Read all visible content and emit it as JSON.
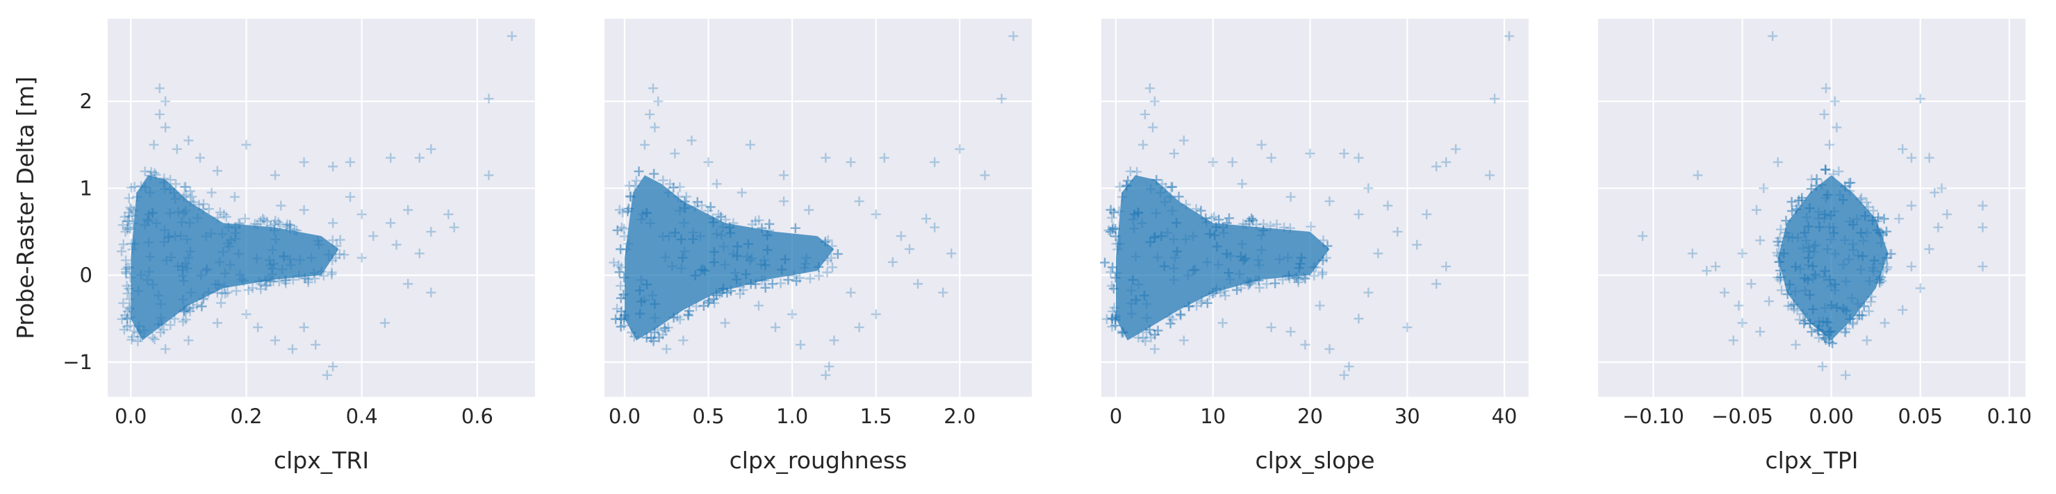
{
  "colors": {
    "marker": "#1f77b4",
    "panel_background": "#eaeaf2",
    "grid": "#ffffff"
  },
  "chart_data": [
    {
      "type": "scatter",
      "marker": "+",
      "xlabel": "clpx_TRI",
      "ylabel": "Probe-Raster Delta [m]",
      "xlim": [
        -0.04,
        0.7
      ],
      "ylim": [
        -1.4,
        2.95
      ],
      "xticks": [
        0.0,
        0.2,
        0.4,
        0.6
      ],
      "xtick_labels": [
        "0.0",
        "0.2",
        "0.4",
        "0.6"
      ],
      "yticks": [
        -1,
        0,
        1,
        2
      ],
      "ytick_labels": [
        "−1",
        "0",
        "1",
        "2"
      ],
      "grid": true,
      "dense_region": [
        [
          0.0,
          0.2
        ],
        [
          0.01,
          0.95
        ],
        [
          0.03,
          1.15
        ],
        [
          0.06,
          1.1
        ],
        [
          0.1,
          0.85
        ],
        [
          0.16,
          0.6
        ],
        [
          0.25,
          0.55
        ],
        [
          0.33,
          0.45
        ],
        [
          0.36,
          0.3
        ],
        [
          0.33,
          0.0
        ],
        [
          0.25,
          -0.05
        ],
        [
          0.16,
          -0.15
        ],
        [
          0.1,
          -0.35
        ],
        [
          0.06,
          -0.55
        ],
        [
          0.02,
          -0.75
        ],
        [
          0.0,
          -0.5
        ]
      ],
      "outliers": [
        [
          0.66,
          2.75
        ],
        [
          0.62,
          2.03
        ],
        [
          0.62,
          1.15
        ],
        [
          0.52,
          1.45
        ],
        [
          0.5,
          1.35
        ],
        [
          0.45,
          1.35
        ],
        [
          0.38,
          1.3
        ],
        [
          0.35,
          1.25
        ],
        [
          0.3,
          1.3
        ],
        [
          0.2,
          1.5
        ],
        [
          0.1,
          1.55
        ],
        [
          0.08,
          1.45
        ],
        [
          0.05,
          2.15
        ],
        [
          0.06,
          2.0
        ],
        [
          0.05,
          1.85
        ],
        [
          0.06,
          1.7
        ],
        [
          0.04,
          1.5
        ],
        [
          0.12,
          1.35
        ],
        [
          0.15,
          1.2
        ],
        [
          0.25,
          1.15
        ],
        [
          0.55,
          0.7
        ],
        [
          0.56,
          0.55
        ],
        [
          0.52,
          0.5
        ],
        [
          0.48,
          0.75
        ],
        [
          0.45,
          0.6
        ],
        [
          0.5,
          0.25
        ],
        [
          0.48,
          -0.1
        ],
        [
          0.52,
          -0.2
        ],
        [
          0.44,
          -0.55
        ],
        [
          0.4,
          0.2
        ],
        [
          0.42,
          0.45
        ],
        [
          0.3,
          -0.6
        ],
        [
          0.32,
          -0.8
        ],
        [
          0.28,
          -0.85
        ],
        [
          0.22,
          -0.6
        ],
        [
          0.2,
          -0.45
        ],
        [
          0.35,
          -1.05
        ],
        [
          0.34,
          -1.15
        ],
        [
          0.25,
          -0.75
        ],
        [
          0.1,
          -0.75
        ],
        [
          0.06,
          -0.85
        ],
        [
          0.15,
          -0.55
        ],
        [
          0.38,
          0.9
        ],
        [
          0.4,
          0.7
        ],
        [
          0.3,
          0.75
        ],
        [
          0.26,
          0.8
        ],
        [
          0.18,
          0.9
        ],
        [
          0.14,
          0.95
        ],
        [
          0.46,
          0.35
        ],
        [
          0.35,
          0.6
        ]
      ]
    },
    {
      "type": "scatter",
      "marker": "+",
      "xlabel": "clpx_roughness",
      "ylabel": "",
      "xlim": [
        -0.12,
        2.43
      ],
      "ylim": [
        -1.4,
        2.95
      ],
      "xticks": [
        0.0,
        0.5,
        1.0,
        1.5,
        2.0
      ],
      "xtick_labels": [
        "0.0",
        "0.5",
        "1.0",
        "1.5",
        "2.0"
      ],
      "yticks": [
        -1,
        0,
        1,
        2
      ],
      "ytick_labels": [
        "",
        "",
        "",
        ""
      ],
      "grid": true,
      "dense_region": [
        [
          0.0,
          0.2
        ],
        [
          0.05,
          0.95
        ],
        [
          0.12,
          1.15
        ],
        [
          0.22,
          1.05
        ],
        [
          0.35,
          0.85
        ],
        [
          0.6,
          0.6
        ],
        [
          0.9,
          0.5
        ],
        [
          1.15,
          0.45
        ],
        [
          1.25,
          0.3
        ],
        [
          1.15,
          0.05
        ],
        [
          0.85,
          -0.05
        ],
        [
          0.55,
          -0.2
        ],
        [
          0.35,
          -0.4
        ],
        [
          0.2,
          -0.6
        ],
        [
          0.07,
          -0.75
        ],
        [
          0.0,
          -0.5
        ]
      ],
      "outliers": [
        [
          2.32,
          2.75
        ],
        [
          2.25,
          2.03
        ],
        [
          2.15,
          1.15
        ],
        [
          2.0,
          1.45
        ],
        [
          1.85,
          1.3
        ],
        [
          1.55,
          1.35
        ],
        [
          1.35,
          1.3
        ],
        [
          1.2,
          1.35
        ],
        [
          0.75,
          1.5
        ],
        [
          0.4,
          1.55
        ],
        [
          0.3,
          1.4
        ],
        [
          0.17,
          2.15
        ],
        [
          0.2,
          2.0
        ],
        [
          0.15,
          1.85
        ],
        [
          0.18,
          1.7
        ],
        [
          0.12,
          1.5
        ],
        [
          0.5,
          1.3
        ],
        [
          0.95,
          1.15
        ],
        [
          1.85,
          0.55
        ],
        [
          1.95,
          0.25
        ],
        [
          1.75,
          -0.1
        ],
        [
          1.9,
          -0.2
        ],
        [
          1.5,
          -0.45
        ],
        [
          1.65,
          0.45
        ],
        [
          1.25,
          -0.75
        ],
        [
          1.22,
          -1.05
        ],
        [
          1.2,
          -1.15
        ],
        [
          1.05,
          -0.8
        ],
        [
          0.9,
          -0.6
        ],
        [
          1.4,
          -0.6
        ],
        [
          0.35,
          -0.75
        ],
        [
          0.25,
          -0.85
        ],
        [
          0.6,
          -0.55
        ],
        [
          1.5,
          0.7
        ],
        [
          1.4,
          0.85
        ],
        [
          1.1,
          0.75
        ],
        [
          0.95,
          0.85
        ],
        [
          0.7,
          0.95
        ],
        [
          0.55,
          1.05
        ],
        [
          1.7,
          0.3
        ],
        [
          1.8,
          0.65
        ],
        [
          1.6,
          0.15
        ],
        [
          1.35,
          -0.2
        ],
        [
          0.8,
          -0.35
        ],
        [
          1.0,
          -0.45
        ]
      ]
    },
    {
      "type": "scatter",
      "marker": "+",
      "xlabel": "clpx_slope",
      "ylabel": "",
      "xlim": [
        -1.5,
        42.5
      ],
      "ylim": [
        -1.4,
        2.95
      ],
      "xticks": [
        0,
        10,
        20,
        30,
        40
      ],
      "xtick_labels": [
        "0",
        "10",
        "20",
        "30",
        "40"
      ],
      "yticks": [
        -1,
        0,
        1,
        2
      ],
      "ytick_labels": [
        "",
        "",
        "",
        ""
      ],
      "grid": true,
      "dense_region": [
        [
          0.0,
          0.2
        ],
        [
          0.6,
          0.95
        ],
        [
          2.0,
          1.15
        ],
        [
          4.0,
          1.1
        ],
        [
          6.5,
          0.85
        ],
        [
          10.0,
          0.6
        ],
        [
          15.0,
          0.55
        ],
        [
          20.0,
          0.5
        ],
        [
          22.0,
          0.3
        ],
        [
          20.0,
          0.0
        ],
        [
          15.0,
          -0.05
        ],
        [
          10.0,
          -0.2
        ],
        [
          6.5,
          -0.4
        ],
        [
          3.5,
          -0.6
        ],
        [
          1.2,
          -0.75
        ],
        [
          0.0,
          -0.5
        ]
      ],
      "outliers": [
        [
          40.5,
          2.75
        ],
        [
          39.0,
          2.03
        ],
        [
          38.5,
          1.15
        ],
        [
          35.0,
          1.45
        ],
        [
          34.0,
          1.3
        ],
        [
          33.0,
          1.25
        ],
        [
          25.0,
          1.35
        ],
        [
          23.5,
          1.4
        ],
        [
          20.0,
          1.4
        ],
        [
          16.0,
          1.35
        ],
        [
          15.0,
          1.5
        ],
        [
          12.0,
          1.3
        ],
        [
          7.0,
          1.55
        ],
        [
          6.0,
          1.4
        ],
        [
          3.5,
          2.15
        ],
        [
          4.0,
          2.0
        ],
        [
          3.0,
          1.85
        ],
        [
          3.8,
          1.7
        ],
        [
          2.8,
          1.5
        ],
        [
          10.0,
          1.3
        ],
        [
          30.0,
          -0.6
        ],
        [
          32.0,
          0.7
        ],
        [
          34.0,
          0.1
        ],
        [
          33.0,
          -0.1
        ],
        [
          29.0,
          0.5
        ],
        [
          28.0,
          0.8
        ],
        [
          26.0,
          1.0
        ],
        [
          24.0,
          -1.05
        ],
        [
          23.5,
          -1.15
        ],
        [
          22.0,
          -0.85
        ],
        [
          19.5,
          -0.8
        ],
        [
          18.0,
          -0.65
        ],
        [
          16.0,
          -0.6
        ],
        [
          25.0,
          -0.5
        ],
        [
          7.0,
          -0.75
        ],
        [
          4.0,
          -0.85
        ],
        [
          11.0,
          -0.55
        ],
        [
          27.0,
          0.25
        ],
        [
          31.0,
          0.35
        ],
        [
          25.0,
          0.7
        ],
        [
          22.0,
          0.85
        ],
        [
          18.0,
          0.9
        ],
        [
          13.0,
          1.05
        ],
        [
          26.0,
          -0.2
        ],
        [
          21.0,
          -0.35
        ]
      ]
    },
    {
      "type": "scatter",
      "marker": "+",
      "xlabel": "clpx_TPI",
      "ylabel": "",
      "xlim": [
        -0.131,
        0.109
      ],
      "ylim": [
        -1.4,
        2.95
      ],
      "xticks": [
        -0.1,
        -0.05,
        0.0,
        0.05,
        0.1
      ],
      "xtick_labels": [
        "−0.10",
        "−0.05",
        "0.00",
        "0.05",
        "0.10"
      ],
      "yticks": [
        -1,
        0,
        1,
        2
      ],
      "ytick_labels": [
        "",
        "",
        "",
        ""
      ],
      "grid": true,
      "dense_region": [
        [
          -0.03,
          0.2
        ],
        [
          -0.025,
          0.6
        ],
        [
          -0.012,
          0.95
        ],
        [
          0.0,
          1.15
        ],
        [
          0.012,
          0.95
        ],
        [
          0.025,
          0.65
        ],
        [
          0.032,
          0.25
        ],
        [
          0.025,
          -0.15
        ],
        [
          0.012,
          -0.5
        ],
        [
          0.0,
          -0.75
        ],
        [
          -0.012,
          -0.55
        ],
        [
          -0.025,
          -0.2
        ]
      ],
      "outliers": [
        [
          -0.033,
          2.75
        ],
        [
          0.05,
          2.03
        ],
        [
          -0.075,
          1.15
        ],
        [
          -0.03,
          1.3
        ],
        [
          0.04,
          1.45
        ],
        [
          0.045,
          1.35
        ],
        [
          0.055,
          1.35
        ],
        [
          0.058,
          0.95
        ],
        [
          0.065,
          0.7
        ],
        [
          0.085,
          0.8
        ],
        [
          0.085,
          0.55
        ],
        [
          0.085,
          0.1
        ],
        [
          -0.003,
          2.15
        ],
        [
          0.002,
          2.0
        ],
        [
          -0.004,
          1.85
        ],
        [
          0.003,
          1.7
        ],
        [
          -0.001,
          1.5
        ],
        [
          -0.106,
          0.45
        ],
        [
          -0.078,
          0.25
        ],
        [
          -0.07,
          0.05
        ],
        [
          -0.065,
          0.1
        ],
        [
          -0.05,
          0.25
        ],
        [
          -0.045,
          -0.1
        ],
        [
          -0.052,
          -0.35
        ],
        [
          -0.05,
          -0.55
        ],
        [
          -0.055,
          -0.75
        ],
        [
          -0.04,
          -0.65
        ],
        [
          -0.005,
          -1.05
        ],
        [
          0.008,
          -1.15
        ],
        [
          0.045,
          0.1
        ],
        [
          0.05,
          -0.15
        ],
        [
          0.04,
          -0.4
        ],
        [
          0.055,
          0.3
        ],
        [
          0.06,
          0.55
        ],
        [
          0.038,
          0.65
        ],
        [
          0.045,
          0.8
        ],
        [
          -0.04,
          0.4
        ],
        [
          -0.042,
          0.75
        ],
        [
          -0.035,
          -0.3
        ],
        [
          0.03,
          -0.55
        ],
        [
          -0.02,
          -0.8
        ],
        [
          0.02,
          -0.75
        ],
        [
          -0.06,
          -0.2
        ],
        [
          0.062,
          1.0
        ],
        [
          -0.038,
          1.0
        ]
      ]
    }
  ]
}
